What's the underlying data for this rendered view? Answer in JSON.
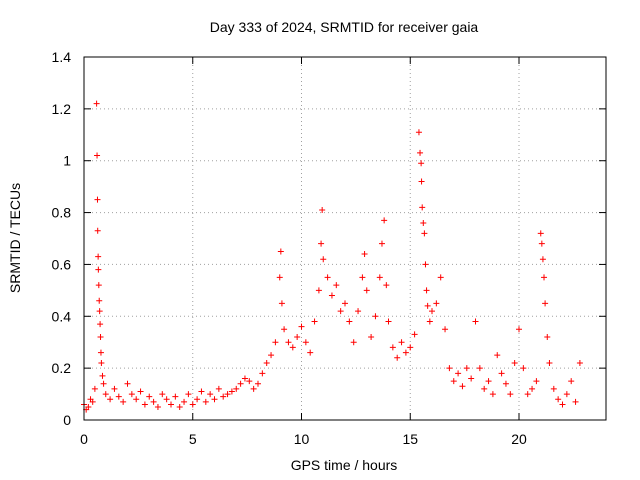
{
  "chart_data": {
    "type": "scatter",
    "title": "Day 333 of 2024, SRMTID for receiver gaia",
    "xlabel": "GPS time / hours",
    "ylabel": "SRMTID / TECUs",
    "xlim": [
      0,
      24
    ],
    "ylim": [
      0,
      1.4
    ],
    "xticks": [
      0,
      5,
      10,
      15,
      20
    ],
    "xtick_labels": [
      "0",
      "5",
      "10",
      "15",
      "20"
    ],
    "yticks": [
      0,
      0.2,
      0.4,
      0.6,
      0.8,
      1.0,
      1.2,
      1.4
    ],
    "ytick_labels": [
      "0",
      "0.2",
      "0.4",
      "0.6",
      "0.8",
      "1",
      "1.2",
      "1.4"
    ],
    "grid": true,
    "marker": "+",
    "series": [
      {
        "name": "SRMTID",
        "color": "#ff0000",
        "points": [
          [
            0.0,
            0.06
          ],
          [
            0.1,
            0.04
          ],
          [
            0.2,
            0.05
          ],
          [
            0.3,
            0.08
          ],
          [
            0.4,
            0.07
          ],
          [
            0.5,
            0.12
          ],
          [
            0.58,
            1.22
          ],
          [
            0.6,
            1.02
          ],
          [
            0.62,
            0.85
          ],
          [
            0.63,
            0.73
          ],
          [
            0.65,
            0.63
          ],
          [
            0.66,
            0.58
          ],
          [
            0.68,
            0.52
          ],
          [
            0.7,
            0.46
          ],
          [
            0.72,
            0.42
          ],
          [
            0.74,
            0.37
          ],
          [
            0.76,
            0.32
          ],
          [
            0.78,
            0.26
          ],
          [
            0.8,
            0.22
          ],
          [
            0.85,
            0.17
          ],
          [
            0.9,
            0.14
          ],
          [
            1.0,
            0.1
          ],
          [
            1.2,
            0.08
          ],
          [
            1.4,
            0.12
          ],
          [
            1.6,
            0.09
          ],
          [
            1.8,
            0.07
          ],
          [
            2.0,
            0.14
          ],
          [
            2.2,
            0.1
          ],
          [
            2.4,
            0.08
          ],
          [
            2.6,
            0.11
          ],
          [
            2.8,
            0.06
          ],
          [
            3.0,
            0.09
          ],
          [
            3.2,
            0.07
          ],
          [
            3.4,
            0.05
          ],
          [
            3.6,
            0.1
          ],
          [
            3.8,
            0.08
          ],
          [
            4.0,
            0.06
          ],
          [
            4.2,
            0.09
          ],
          [
            4.4,
            0.05
          ],
          [
            4.6,
            0.07
          ],
          [
            4.8,
            0.1
          ],
          [
            5.0,
            0.06
          ],
          [
            5.2,
            0.08
          ],
          [
            5.4,
            0.11
          ],
          [
            5.6,
            0.07
          ],
          [
            5.8,
            0.1
          ],
          [
            6.0,
            0.08
          ],
          [
            6.2,
            0.12
          ],
          [
            6.4,
            0.09
          ],
          [
            6.6,
            0.1
          ],
          [
            6.8,
            0.11
          ],
          [
            7.0,
            0.12
          ],
          [
            7.2,
            0.14
          ],
          [
            7.4,
            0.16
          ],
          [
            7.6,
            0.15
          ],
          [
            7.8,
            0.12
          ],
          [
            8.0,
            0.14
          ],
          [
            8.2,
            0.18
          ],
          [
            8.4,
            0.22
          ],
          [
            8.6,
            0.25
          ],
          [
            8.8,
            0.3
          ],
          [
            9.0,
            0.55
          ],
          [
            9.05,
            0.65
          ],
          [
            9.1,
            0.45
          ],
          [
            9.2,
            0.35
          ],
          [
            9.4,
            0.3
          ],
          [
            9.6,
            0.28
          ],
          [
            9.8,
            0.32
          ],
          [
            10.0,
            0.36
          ],
          [
            10.2,
            0.3
          ],
          [
            10.4,
            0.26
          ],
          [
            10.6,
            0.38
          ],
          [
            10.8,
            0.5
          ],
          [
            10.9,
            0.68
          ],
          [
            10.95,
            0.81
          ],
          [
            11.0,
            0.62
          ],
          [
            11.2,
            0.55
          ],
          [
            11.4,
            0.48
          ],
          [
            11.6,
            0.52
          ],
          [
            11.8,
            0.42
          ],
          [
            12.0,
            0.45
          ],
          [
            12.2,
            0.38
          ],
          [
            12.4,
            0.3
          ],
          [
            12.6,
            0.42
          ],
          [
            12.8,
            0.55
          ],
          [
            12.9,
            0.64
          ],
          [
            13.0,
            0.5
          ],
          [
            13.2,
            0.32
          ],
          [
            13.4,
            0.4
          ],
          [
            13.6,
            0.55
          ],
          [
            13.7,
            0.68
          ],
          [
            13.8,
            0.77
          ],
          [
            13.9,
            0.52
          ],
          [
            14.0,
            0.38
          ],
          [
            14.2,
            0.28
          ],
          [
            14.4,
            0.24
          ],
          [
            14.6,
            0.3
          ],
          [
            14.8,
            0.26
          ],
          [
            15.0,
            0.28
          ],
          [
            15.2,
            0.33
          ],
          [
            15.4,
            1.11
          ],
          [
            15.45,
            1.03
          ],
          [
            15.5,
            0.99
          ],
          [
            15.52,
            0.92
          ],
          [
            15.55,
            0.82
          ],
          [
            15.6,
            0.76
          ],
          [
            15.65,
            0.72
          ],
          [
            15.7,
            0.6
          ],
          [
            15.75,
            0.5
          ],
          [
            15.8,
            0.44
          ],
          [
            15.9,
            0.38
          ],
          [
            16.0,
            0.42
          ],
          [
            16.2,
            0.45
          ],
          [
            16.4,
            0.55
          ],
          [
            16.6,
            0.35
          ],
          [
            16.8,
            0.2
          ],
          [
            17.0,
            0.15
          ],
          [
            17.2,
            0.18
          ],
          [
            17.4,
            0.13
          ],
          [
            17.6,
            0.2
          ],
          [
            17.8,
            0.16
          ],
          [
            18.0,
            0.38
          ],
          [
            18.2,
            0.2
          ],
          [
            18.4,
            0.12
          ],
          [
            18.6,
            0.15
          ],
          [
            18.8,
            0.1
          ],
          [
            19.0,
            0.25
          ],
          [
            19.2,
            0.18
          ],
          [
            19.4,
            0.14
          ],
          [
            19.6,
            0.1
          ],
          [
            19.8,
            0.22
          ],
          [
            20.0,
            0.35
          ],
          [
            20.2,
            0.2
          ],
          [
            20.4,
            0.1
          ],
          [
            20.6,
            0.12
          ],
          [
            20.8,
            0.15
          ],
          [
            21.0,
            0.72
          ],
          [
            21.05,
            0.68
          ],
          [
            21.1,
            0.62
          ],
          [
            21.15,
            0.55
          ],
          [
            21.2,
            0.45
          ],
          [
            21.3,
            0.32
          ],
          [
            21.4,
            0.22
          ],
          [
            21.6,
            0.12
          ],
          [
            21.8,
            0.08
          ],
          [
            22.0,
            0.06
          ],
          [
            22.2,
            0.1
          ],
          [
            22.4,
            0.15
          ],
          [
            22.6,
            0.07
          ],
          [
            22.8,
            0.22
          ]
        ]
      }
    ]
  }
}
